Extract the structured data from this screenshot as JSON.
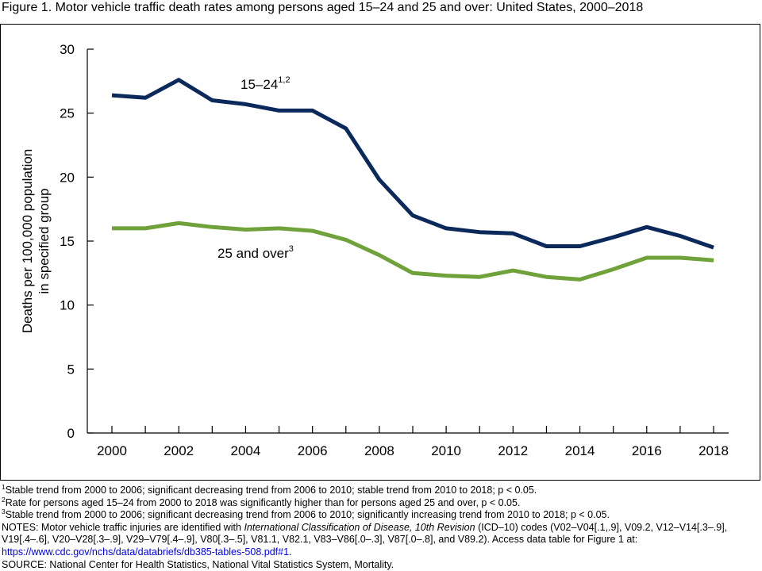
{
  "title": "Figure 1. Motor vehicle traffic death rates among persons aged 15–24 and 25 and over: United States, 2000–2018",
  "chart_data": {
    "type": "line",
    "ylabel": [
      "Deaths per 100,000 population",
      "in specified group"
    ],
    "ylim": [
      0,
      30
    ],
    "yticks": [
      "0",
      "5",
      "10",
      "15",
      "20",
      "25",
      "30"
    ],
    "xlim": [
      2000,
      2018
    ],
    "xticks": [
      "2000",
      "2002",
      "2004",
      "2006",
      "2008",
      "2010",
      "2012",
      "2014",
      "2016",
      "2018"
    ],
    "grid": false,
    "x": [
      2000,
      2001,
      2002,
      2003,
      2004,
      2005,
      2006,
      2007,
      2008,
      2009,
      2010,
      2011,
      2012,
      2013,
      2014,
      2015,
      2016,
      2017,
      2018
    ],
    "series": [
      {
        "label": "15–24",
        "label_sup": "1,2",
        "color": "#0b2a5b",
        "values": [
          26.4,
          26.2,
          27.6,
          26.0,
          25.7,
          25.2,
          25.2,
          23.8,
          19.8,
          17.0,
          16.0,
          15.7,
          15.6,
          14.6,
          14.6,
          15.3,
          16.1,
          15.4,
          14.5
        ]
      },
      {
        "label": "25 and over",
        "label_sup": "3",
        "color": "#6fa23a",
        "values": [
          16.0,
          16.0,
          16.4,
          16.1,
          15.9,
          16.0,
          15.8,
          15.1,
          13.9,
          12.5,
          12.3,
          12.2,
          12.7,
          12.2,
          12.0,
          12.8,
          13.7,
          13.7,
          13.5
        ]
      }
    ]
  },
  "notes": {
    "fn1_sup": "1",
    "fn1": "Stable trend from 2000 to 2006; significant decreasing trend from 2006 to 2010; stable trend from 2010 to 2018; p < 0.05.",
    "fn2_sup": "2",
    "fn2": "Rate for persons aged 15–24 from 2000 to 2018 was significantly higher than for persons aged 25 and over, p < 0.05.",
    "fn3_sup": "3",
    "fn3": "Stable trend from 2000 to 2006; significant decreasing trend from 2006 to 2010; significantly increasing trend from 2010 to 2018; p < 0.05.",
    "notes_a": "NOTES: Motor vehicle traffic injuries are identified with ",
    "notes_italic": "International Classification of Disease, 10th Revision",
    "notes_b": " (ICD–10) codes (V02–V04[.1,.9], V09.2, V12–V14[.3–.9], V19[.4–.6], V20–V28[.3–.9], V29–V79[.4–.9], V80[.3–.5], V81.1, V82.1, V83–V86[.0–.3], V87[.0–.8], and V89.2). Access data table for Figure 1 at: ",
    "link": "https://www.cdc.gov/nchs/data/databriefs/db385-tables-508.pdf#1",
    "notes_c": ".",
    "source": "SOURCE: National Center for Health Statistics, National Vital Statistics System, Mortality."
  }
}
